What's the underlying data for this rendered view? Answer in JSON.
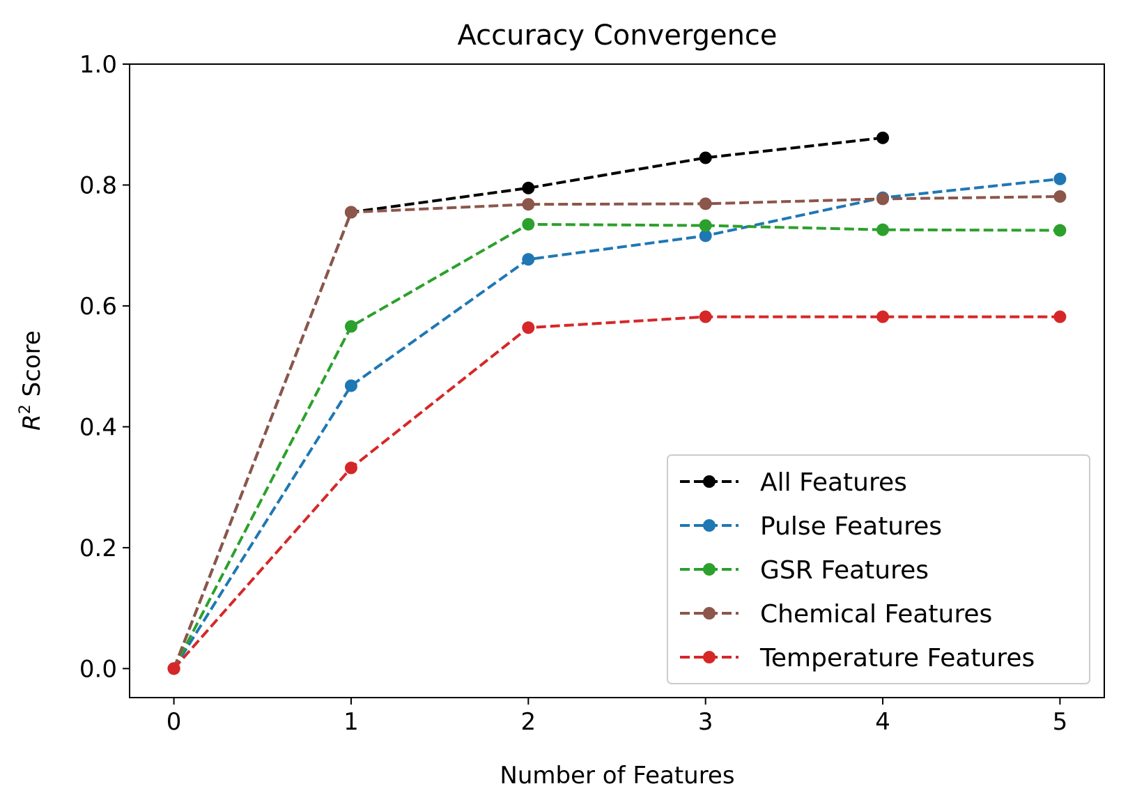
{
  "chart_data": {
    "type": "line",
    "title": "Accuracy Convergence",
    "xlabel": "Number of Features",
    "ylabel_main": "R",
    "ylabel_sup": "2",
    "ylabel_rest": " Score",
    "xlim": [
      -0.25,
      5.25
    ],
    "ylim": [
      -0.048,
      1.0
    ],
    "xticks": [
      0,
      1,
      2,
      3,
      4,
      5
    ],
    "xtick_labels": [
      "0",
      "1",
      "2",
      "3",
      "4",
      "5"
    ],
    "yticks": [
      0.0,
      0.2,
      0.4,
      0.6,
      0.8,
      1.0
    ],
    "ytick_labels": [
      "0.0",
      "0.2",
      "0.4",
      "0.6",
      "0.8",
      "1.0"
    ],
    "grid": false,
    "legend_position": "lower-right",
    "series": [
      {
        "name": "All Features",
        "color": "#000000",
        "x": [
          0,
          1,
          2,
          3,
          4
        ],
        "values": [
          0.0,
          0.755,
          0.795,
          0.845,
          0.878
        ]
      },
      {
        "name": "Pulse Features",
        "color": "#1f77b4",
        "x": [
          0,
          1,
          2,
          3,
          4,
          5
        ],
        "values": [
          0.0,
          0.468,
          0.677,
          0.716,
          0.779,
          0.81
        ]
      },
      {
        "name": "GSR Features",
        "color": "#2ca02c",
        "x": [
          0,
          1,
          2,
          3,
          4,
          5
        ],
        "values": [
          0.0,
          0.566,
          0.735,
          0.733,
          0.726,
          0.725
        ]
      },
      {
        "name": "Chemical Features",
        "color": "#8c564b",
        "x": [
          0,
          1,
          2,
          3,
          4,
          5
        ],
        "values": [
          0.0,
          0.755,
          0.768,
          0.769,
          0.777,
          0.781
        ]
      },
      {
        "name": "Temperature Features",
        "color": "#d62728",
        "x": [
          0,
          1,
          2,
          3,
          4,
          5
        ],
        "values": [
          0.0,
          0.332,
          0.564,
          0.582,
          0.582,
          0.582
        ]
      }
    ]
  }
}
